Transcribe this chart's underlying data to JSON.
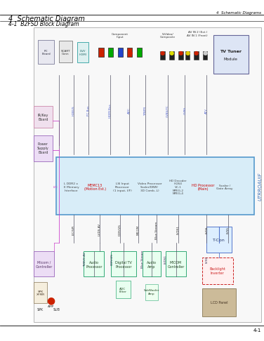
{
  "bg_color": "#000000",
  "page_bg": "#ffffff",
  "header_text_right": "4  Schematic Diagrams",
  "title_main": "4  Schematic Diagram",
  "title_sub": "4-1  B2FSD Block Diagram",
  "footer_text": "4-1",
  "diag_l": 0.155,
  "diag_b": 0.085,
  "diag_r": 0.965,
  "diag_t": 0.875
}
